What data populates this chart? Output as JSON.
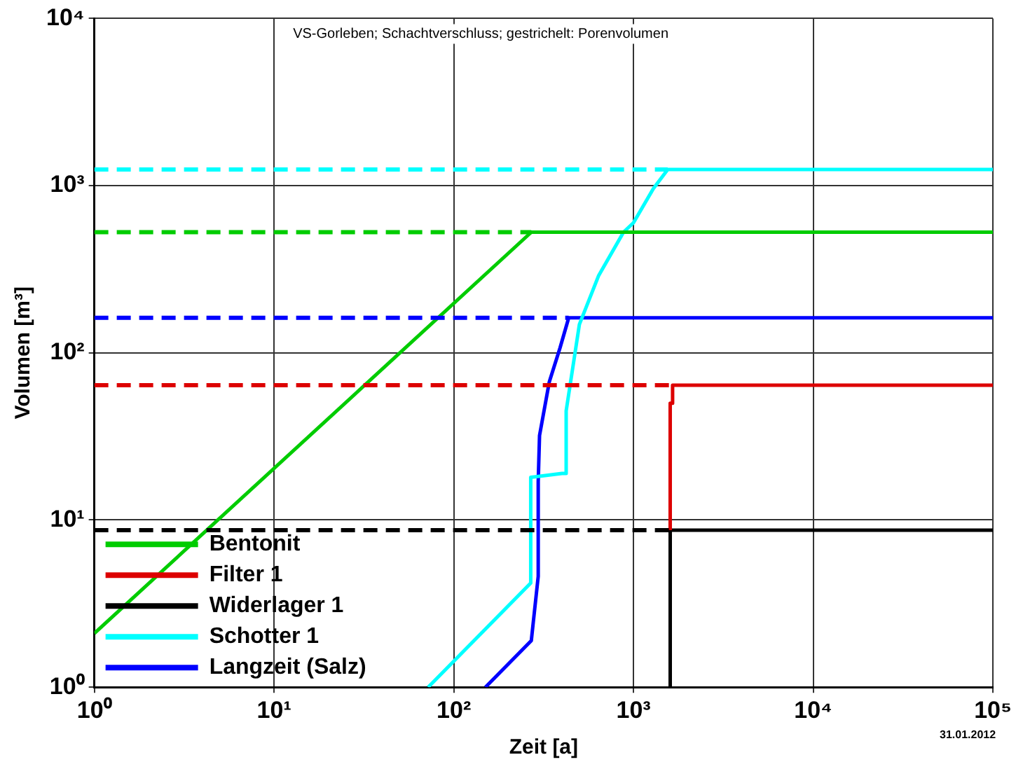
{
  "chart_data": {
    "type": "line",
    "subtitle": "VS-Gorleben; Schachtverschluss; gestrichelt: Porenvolumen",
    "xlabel": "Zeit [a]",
    "ylabel": "Volumen [m³]",
    "log": "xy",
    "grid": true,
    "legend": "bottom left",
    "marker": "none",
    "xlim": [
      1,
      100000
    ],
    "ylim": [
      1,
      10000
    ],
    "xticks": [
      {
        "value": 1,
        "label": "10⁰"
      },
      {
        "value": 10,
        "label": "10¹"
      },
      {
        "value": 100,
        "label": "10²"
      },
      {
        "value": 1000,
        "label": "10³"
      },
      {
        "value": 10000,
        "label": "10⁴"
      },
      {
        "value": 100000,
        "label": "10⁵"
      }
    ],
    "yticks": [
      {
        "value": 1,
        "label": "10⁰"
      },
      {
        "value": 10,
        "label": "10¹"
      },
      {
        "value": 100,
        "label": "10²"
      },
      {
        "value": 1000,
        "label": "10³"
      },
      {
        "value": 10000,
        "label": "10⁴"
      }
    ],
    "annotations": [
      "31.01.2012"
    ],
    "series": [
      {
        "line_style": "dashed",
        "color": "#00ffff",
        "x": [
          1,
          1550
        ],
        "values": [
          1250,
          1250
        ]
      },
      {
        "line_style": "dashed",
        "color": "#00cc00",
        "x": [
          1,
          270
        ],
        "values": [
          527,
          527
        ]
      },
      {
        "line_style": "dashed",
        "color": "#0000ff",
        "x": [
          1,
          436
        ],
        "values": [
          162,
          162
        ]
      },
      {
        "line_style": "dashed",
        "color": "#dd0000",
        "x": [
          1,
          1600
        ],
        "values": [
          64,
          64
        ]
      },
      {
        "line_style": "dashed",
        "color": "#000000",
        "x": [
          1,
          1600
        ],
        "values": [
          8.7,
          8.7
        ]
      },
      {
        "name": "Bentonit",
        "color": "#00cc00",
        "x": [
          1,
          270,
          100000
        ],
        "values": [
          2.1,
          527,
          527
        ]
      },
      {
        "name": "Filter 1",
        "color": "#dd0000",
        "x": [
          1600,
          1600,
          1650,
          1650,
          100000
        ],
        "values": [
          8.7,
          50,
          50,
          64,
          64
        ]
      },
      {
        "name": "Widerlager 1",
        "color": "#000000",
        "x": [
          1600,
          1600,
          100000
        ],
        "values": [
          1,
          8.7,
          8.7
        ]
      },
      {
        "name": "Schotter 1",
        "color": "#00ffff",
        "x": [
          72,
          268,
          268,
          400,
          422,
          422,
          500,
          640,
          880,
          1000,
          1290,
          1550,
          100000
        ],
        "values": [
          1,
          4.2,
          18,
          19,
          19,
          45,
          148,
          290,
          527,
          600,
          960,
          1250,
          1250
        ]
      },
      {
        "name": "Langzeit (Salz)",
        "color": "#0000ff",
        "x": [
          150,
          270,
          295,
          295,
          300,
          340,
          390,
          436,
          100000
        ],
        "values": [
          1,
          1.9,
          4.6,
          17,
          32,
          67,
          107,
          162,
          162
        ]
      }
    ]
  }
}
